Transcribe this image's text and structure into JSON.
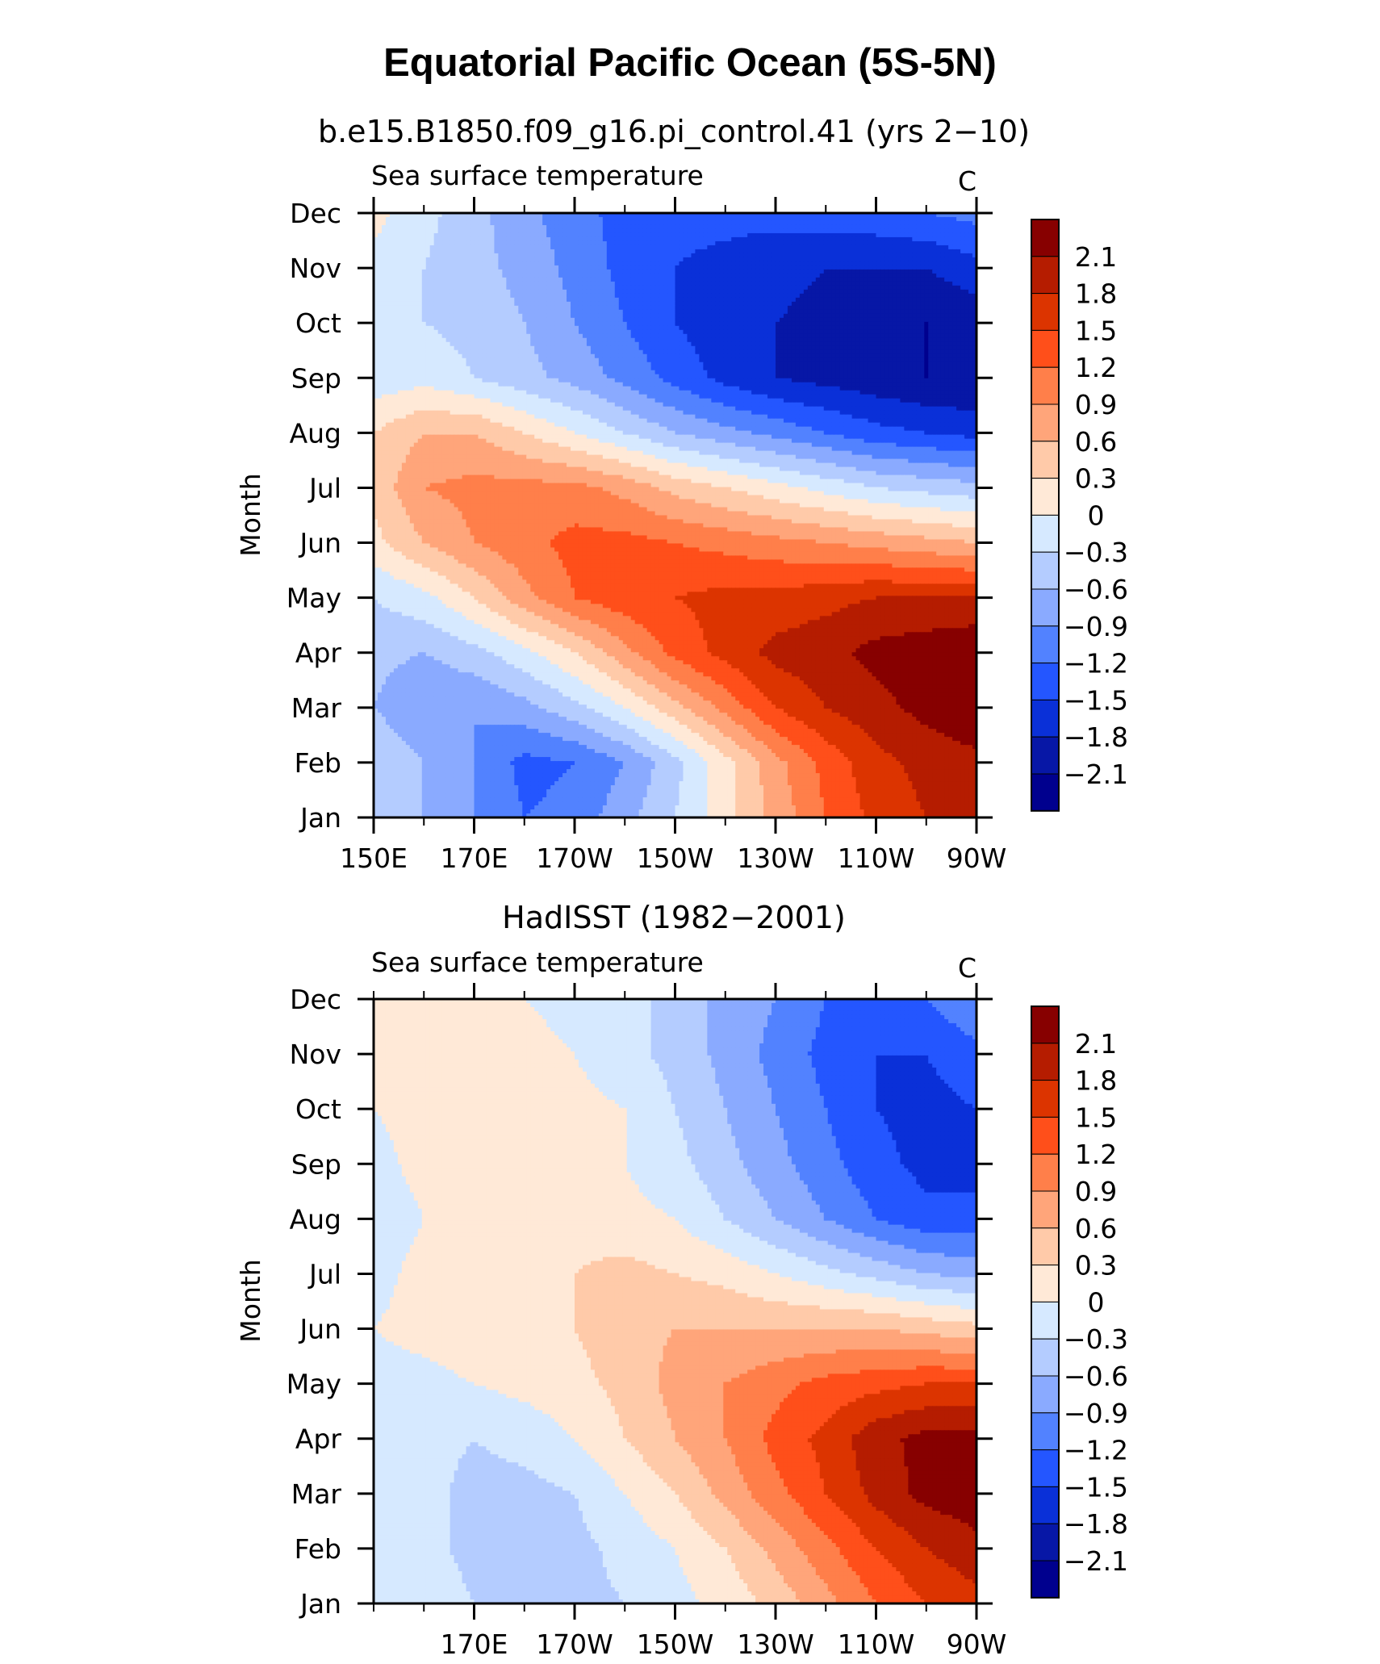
{
  "figure": {
    "title": "Equatorial Pacific Ocean (5S-5N)"
  },
  "legend": {
    "levels": [
      "2.1",
      "1.8",
      "1.5",
      "1.2",
      "0.9",
      "0.6",
      "0.3",
      "0",
      "−0.3",
      "−0.6",
      "−0.9",
      "−1.2",
      "−1.5",
      "−1.8",
      "−2.1"
    ],
    "colors": [
      "#870000",
      "#b51c00",
      "#dc3400",
      "#ff4f1a",
      "#ff7f4a",
      "#ffa57a",
      "#ffcaa9",
      "#ffe9d7",
      "#d6e9ff",
      "#b4ccff",
      "#8aaaff",
      "#5282ff",
      "#2456ff",
      "#0a30d8",
      "#0717a6",
      "#00008e"
    ]
  },
  "colors": {
    "pos": [
      "#ffe9d7",
      "#ffcaa9",
      "#ffa57a",
      "#ff7f4a",
      "#ff4f1a",
      "#dc3400",
      "#b51c00",
      "#870000"
    ],
    "neg": [
      "#d6e9ff",
      "#b4ccff",
      "#8aaaff",
      "#5282ff",
      "#2456ff",
      "#0a30d8",
      "#0717a6",
      "#00008e"
    ]
  },
  "chart_data": [
    {
      "type": "heatmap",
      "subtitle": "b.e15.B1850.f09_g16.pi_control.41 (yrs 2−10)",
      "left_label": "Sea surface temperature",
      "units": "C",
      "ylabel": "Month",
      "x": {
        "ticks": [
          "150E",
          "170E",
          "170W",
          "150W",
          "130W",
          "110W",
          "90W"
        ],
        "values": [
          150,
          170,
          190,
          210,
          230,
          250,
          270
        ],
        "range": [
          150,
          270
        ]
      },
      "y": {
        "ticks": [
          "Jan",
          "Feb",
          "Mar",
          "Apr",
          "May",
          "Jun",
          "Jul",
          "Aug",
          "Sep",
          "Oct",
          "Nov",
          "Dec"
        ],
        "range": [
          1,
          12
        ]
      },
      "z": [
        [
          -0.4,
          -0.6,
          -0.9,
          -1.2,
          -1.1,
          -0.7,
          -0.3,
          0.2,
          0.7,
          1.2,
          1.6,
          1.8,
          1.9
        ],
        [
          -0.3,
          -0.6,
          -0.9,
          -1.3,
          -1.2,
          -0.9,
          -0.4,
          0.2,
          0.8,
          1.3,
          1.7,
          1.9,
          2.0
        ],
        [
          -0.6,
          -0.9,
          -0.9,
          -0.7,
          -0.4,
          0.0,
          0.5,
          1.0,
          1.5,
          1.8,
          2.0,
          2.2,
          2.4
        ],
        [
          -0.5,
          -0.6,
          -0.4,
          -0.1,
          0.3,
          0.8,
          1.3,
          1.6,
          1.9,
          2.0,
          2.2,
          2.3,
          2.4
        ],
        [
          -0.3,
          -0.1,
          0.3,
          0.8,
          1.2,
          1.4,
          1.5,
          1.6,
          1.6,
          1.7,
          1.8,
          1.8,
          1.8
        ],
        [
          0.2,
          0.6,
          0.9,
          1.1,
          1.3,
          1.3,
          1.2,
          1.1,
          1.0,
          0.9,
          0.8,
          0.7,
          0.6
        ],
        [
          0.4,
          0.9,
          1.0,
          1.0,
          1.0,
          0.8,
          0.5,
          0.3,
          0.1,
          -0.1,
          -0.3,
          -0.4,
          -0.5
        ],
        [
          0.3,
          0.6,
          0.6,
          0.3,
          0.0,
          -0.3,
          -0.6,
          -0.8,
          -1.0,
          -1.2,
          -1.4,
          -1.5,
          -1.6
        ],
        [
          -0.2,
          -0.1,
          -0.3,
          -0.5,
          -0.7,
          -1.0,
          -1.3,
          -1.6,
          -1.8,
          -1.9,
          -2.0,
          -2.1,
          -2.1
        ],
        [
          -0.2,
          -0.3,
          -0.4,
          -0.6,
          -0.9,
          -1.2,
          -1.5,
          -1.7,
          -1.8,
          -1.9,
          -2.0,
          -2.1,
          -2.0
        ],
        [
          -0.1,
          -0.3,
          -0.5,
          -0.7,
          -1.0,
          -1.3,
          -1.5,
          -1.6,
          -1.7,
          -1.8,
          -1.8,
          -1.8,
          -1.6
        ],
        [
          0.1,
          -0.2,
          -0.5,
          -0.8,
          -1.1,
          -1.3,
          -1.4,
          -1.4,
          -1.4,
          -1.3,
          -1.3,
          -1.2,
          -1.1
        ]
      ]
    },
    {
      "type": "heatmap",
      "subtitle": "HadISST (1982−2001)",
      "left_label": "Sea surface temperature",
      "units": "C",
      "ylabel": "Month",
      "x": {
        "ticks": [
          "170E",
          "170W",
          "150W",
          "130W",
          "110W",
          "90W"
        ],
        "values": [
          170,
          190,
          210,
          230,
          250,
          270
        ],
        "range": [
          150,
          270
        ]
      },
      "y": {
        "ticks": [
          "Jan",
          "Feb",
          "Mar",
          "Apr",
          "May",
          "Jun",
          "Jul",
          "Aug",
          "Sep",
          "Oct",
          "Nov",
          "Dec"
        ],
        "range": [
          1,
          12
        ]
      },
      "z": [
        [
          0.0,
          -0.1,
          -0.3,
          -0.5,
          -0.4,
          -0.3,
          -0.1,
          0.1,
          0.4,
          0.8,
          1.2,
          1.5,
          1.7
        ],
        [
          -0.1,
          -0.2,
          -0.4,
          -0.5,
          -0.4,
          -0.2,
          0.0,
          0.3,
          0.7,
          1.1,
          1.5,
          1.8,
          2.0
        ],
        [
          -0.1,
          -0.2,
          -0.4,
          -0.4,
          -0.3,
          0.0,
          0.3,
          0.7,
          1.1,
          1.5,
          1.9,
          2.2,
          2.3
        ],
        [
          -0.1,
          -0.2,
          -0.3,
          -0.2,
          0.0,
          0.3,
          0.6,
          0.9,
          1.3,
          1.6,
          2.0,
          2.2,
          2.2
        ],
        [
          -0.1,
          -0.1,
          0.0,
          0.1,
          0.2,
          0.4,
          0.7,
          0.9,
          1.1,
          1.3,
          1.4,
          1.5,
          1.5
        ],
        [
          0.0,
          0.1,
          0.2,
          0.2,
          0.3,
          0.5,
          0.6,
          0.6,
          0.6,
          0.6,
          0.6,
          0.5,
          0.4
        ],
        [
          -0.1,
          0.1,
          0.2,
          0.2,
          0.3,
          0.4,
          0.3,
          0.2,
          0.0,
          -0.2,
          -0.4,
          -0.6,
          -0.7
        ],
        [
          -0.2,
          0.0,
          0.2,
          0.2,
          0.2,
          0.1,
          0.0,
          -0.3,
          -0.6,
          -0.9,
          -1.2,
          -1.4,
          -1.4
        ],
        [
          -0.1,
          0.1,
          0.2,
          0.3,
          0.2,
          0.0,
          -0.2,
          -0.5,
          -0.8,
          -1.1,
          -1.4,
          -1.6,
          -1.6
        ],
        [
          0.0,
          0.1,
          0.1,
          0.2,
          0.1,
          0.0,
          -0.3,
          -0.6,
          -0.9,
          -1.2,
          -1.5,
          -1.6,
          -1.5
        ],
        [
          0.1,
          0.1,
          0.1,
          0.1,
          0.0,
          -0.2,
          -0.4,
          -0.7,
          -1.0,
          -1.3,
          -1.5,
          -1.5,
          -1.3
        ],
        [
          0.1,
          0.1,
          0.1,
          0.0,
          -0.1,
          -0.2,
          -0.4,
          -0.7,
          -0.9,
          -1.2,
          -1.3,
          -1.2,
          -0.9
        ]
      ]
    }
  ]
}
